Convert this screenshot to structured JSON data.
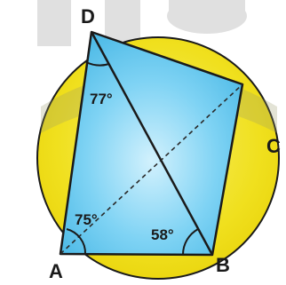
{
  "diagram": {
    "vertices": {
      "A": "A",
      "B": "B",
      "C": "C",
      "D": "D"
    },
    "angles": {
      "angle_at_A": "75°",
      "angle_at_B": "58°",
      "angle_at_D": "77°"
    },
    "colors": {
      "circle_fill": "#f2e21a",
      "circle_stroke": "#1a1a1a",
      "quad_fill": "#5ec8f0",
      "quad_center": "#c6ecfb",
      "watermark": "#c8c8c8",
      "line": "#1a1a1a"
    }
  }
}
